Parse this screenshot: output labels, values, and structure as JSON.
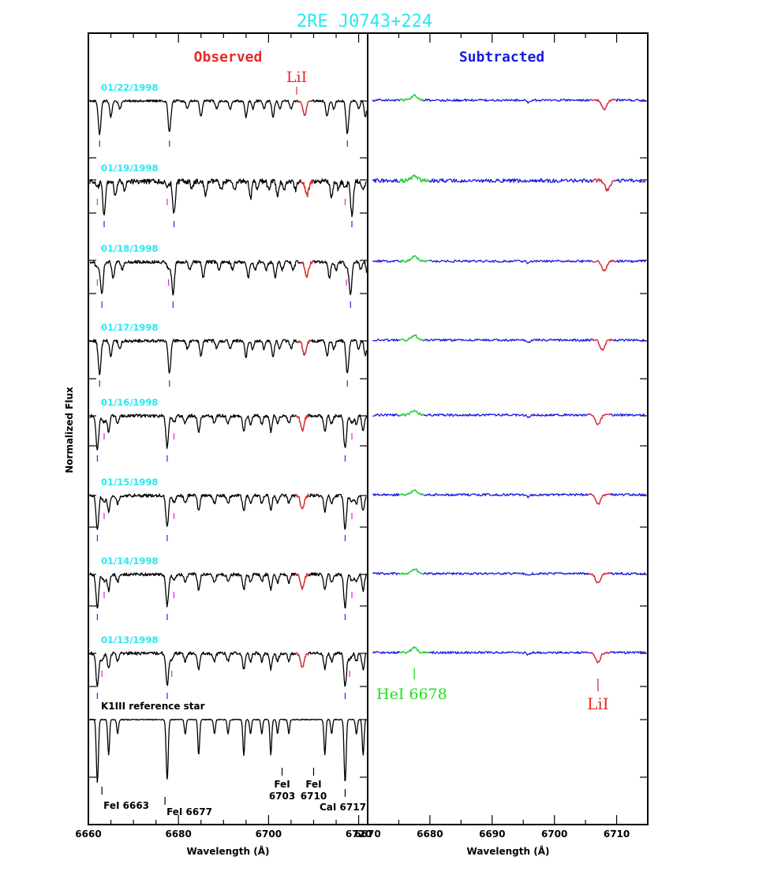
{
  "title": "2RE J0743+224",
  "ylabel": "Normalized Flux",
  "colors": {
    "title": "#29e8ee",
    "observed": "#000000",
    "subtracted": "#1a1ae0",
    "lithium": "#e8292a",
    "helium": "#22dd22",
    "primary_marker": "#2244ee",
    "secondary_marker": "#dd33dd"
  },
  "chart_data": [
    {
      "type": "line",
      "panel_title": "Observed",
      "xlabel": "Wavelength (Å)",
      "xlim": [
        6660,
        6722
      ],
      "x_ticks": [
        6660,
        6680,
        6700,
        6720
      ],
      "line_label": "LiI",
      "line_label_wavelength": 6708,
      "series": [
        {
          "date": "01/22/1998",
          "li_highlight": [
            6706.5,
            6709.5
          ],
          "primary_lines": [
            6662.5,
            6678.0,
            6717.5
          ],
          "secondary_lines": []
        },
        {
          "date": "01/19/1998",
          "li_highlight": [
            6707.0,
            6710.0
          ],
          "primary_lines": [
            6663.5,
            6679.0,
            6718.5
          ],
          "secondary_lines": [
            6662.0,
            6677.5,
            6717.0
          ]
        },
        {
          "date": "01/18/1998",
          "li_highlight": [
            6707.0,
            6710.0
          ],
          "primary_lines": [
            6663.0,
            6678.8,
            6718.2
          ],
          "secondary_lines": [
            6662.0,
            6677.8,
            6717.3
          ]
        },
        {
          "date": "01/17/1998",
          "li_highlight": [
            6706.5,
            6709.5
          ],
          "primary_lines": [
            6662.5,
            6678.0,
            6717.5
          ],
          "secondary_lines": []
        },
        {
          "date": "01/16/1998",
          "li_highlight": [
            6706.0,
            6709.0
          ],
          "primary_lines": [
            6662.0,
            6677.5,
            6717.0
          ],
          "secondary_lines": [
            6663.5,
            6679.0,
            6718.5
          ]
        },
        {
          "date": "01/15/1998",
          "li_highlight": [
            6706.0,
            6709.0
          ],
          "primary_lines": [
            6662.0,
            6677.5,
            6717.0
          ],
          "secondary_lines": [
            6663.5,
            6679.0,
            6718.5
          ]
        },
        {
          "date": "01/14/1998",
          "li_highlight": [
            6706.0,
            6709.0
          ],
          "primary_lines": [
            6662.0,
            6677.5,
            6717.0
          ],
          "secondary_lines": [
            6663.5,
            6679.0,
            6718.5
          ]
        },
        {
          "date": "01/13/1998",
          "li_highlight": [
            6706.0,
            6709.0
          ],
          "primary_lines": [
            6662.0,
            6677.5,
            6717.0
          ],
          "secondary_lines": [
            6663.0,
            6678.5,
            6718.0
          ]
        },
        {
          "date": "K1III reference star",
          "li_highlight": null,
          "primary_lines": [],
          "secondary_lines": []
        }
      ],
      "reference_lines": [
        {
          "label": "FeI 6663",
          "wavelength": 6663
        },
        {
          "label": "FeI 6677",
          "wavelength": 6677
        },
        {
          "label": "FeI 6703",
          "wavelength": 6703
        },
        {
          "label": "FeI 6710",
          "wavelength": 6710
        },
        {
          "label": "CaI 6717",
          "wavelength": 6717
        }
      ]
    },
    {
      "type": "line",
      "panel_title": "Subtracted",
      "xlabel": "Wavelength (Å)",
      "xlim": [
        6670,
        6715
      ],
      "x_ticks": [
        6670,
        6680,
        6690,
        6700,
        6710
      ],
      "series": [
        {
          "date": "01/22/1998",
          "he_highlight": [
            6675,
            6679
          ],
          "li_highlight": [
            6706,
            6710
          ],
          "li_center": 6708.0
        },
        {
          "date": "01/19/1998",
          "he_highlight": [
            6675,
            6680
          ],
          "li_highlight": [
            6706,
            6710
          ],
          "li_center": 6708.5
        },
        {
          "date": "01/18/1998",
          "he_highlight": [
            6675,
            6680
          ],
          "li_highlight": [
            6706,
            6710
          ],
          "li_center": 6708.0
        },
        {
          "date": "01/17/1998",
          "he_highlight": [
            6675,
            6679
          ],
          "li_highlight": [
            6706,
            6709.5
          ],
          "li_center": 6707.7
        },
        {
          "date": "01/16/1998",
          "he_highlight": [
            6675,
            6679
          ],
          "li_highlight": [
            6705.5,
            6709
          ],
          "li_center": 6707.0
        },
        {
          "date": "01/15/1998",
          "he_highlight": [
            6675,
            6679
          ],
          "li_highlight": [
            6705.5,
            6709
          ],
          "li_center": 6707.0
        },
        {
          "date": "01/14/1998",
          "he_highlight": [
            6675,
            6679
          ],
          "li_highlight": [
            6705.5,
            6709
          ],
          "li_center": 6707.0
        },
        {
          "date": "01/13/1998",
          "he_highlight": [
            6675,
            6680
          ],
          "li_highlight": [
            6705.5,
            6709
          ],
          "li_center": 6707.0
        }
      ],
      "annotations": [
        {
          "label": "HeI 6678",
          "wavelength": 6678,
          "color": "#22dd22"
        },
        {
          "label": "LiI",
          "wavelength": 6708,
          "color": "#e8292a"
        }
      ]
    }
  ]
}
